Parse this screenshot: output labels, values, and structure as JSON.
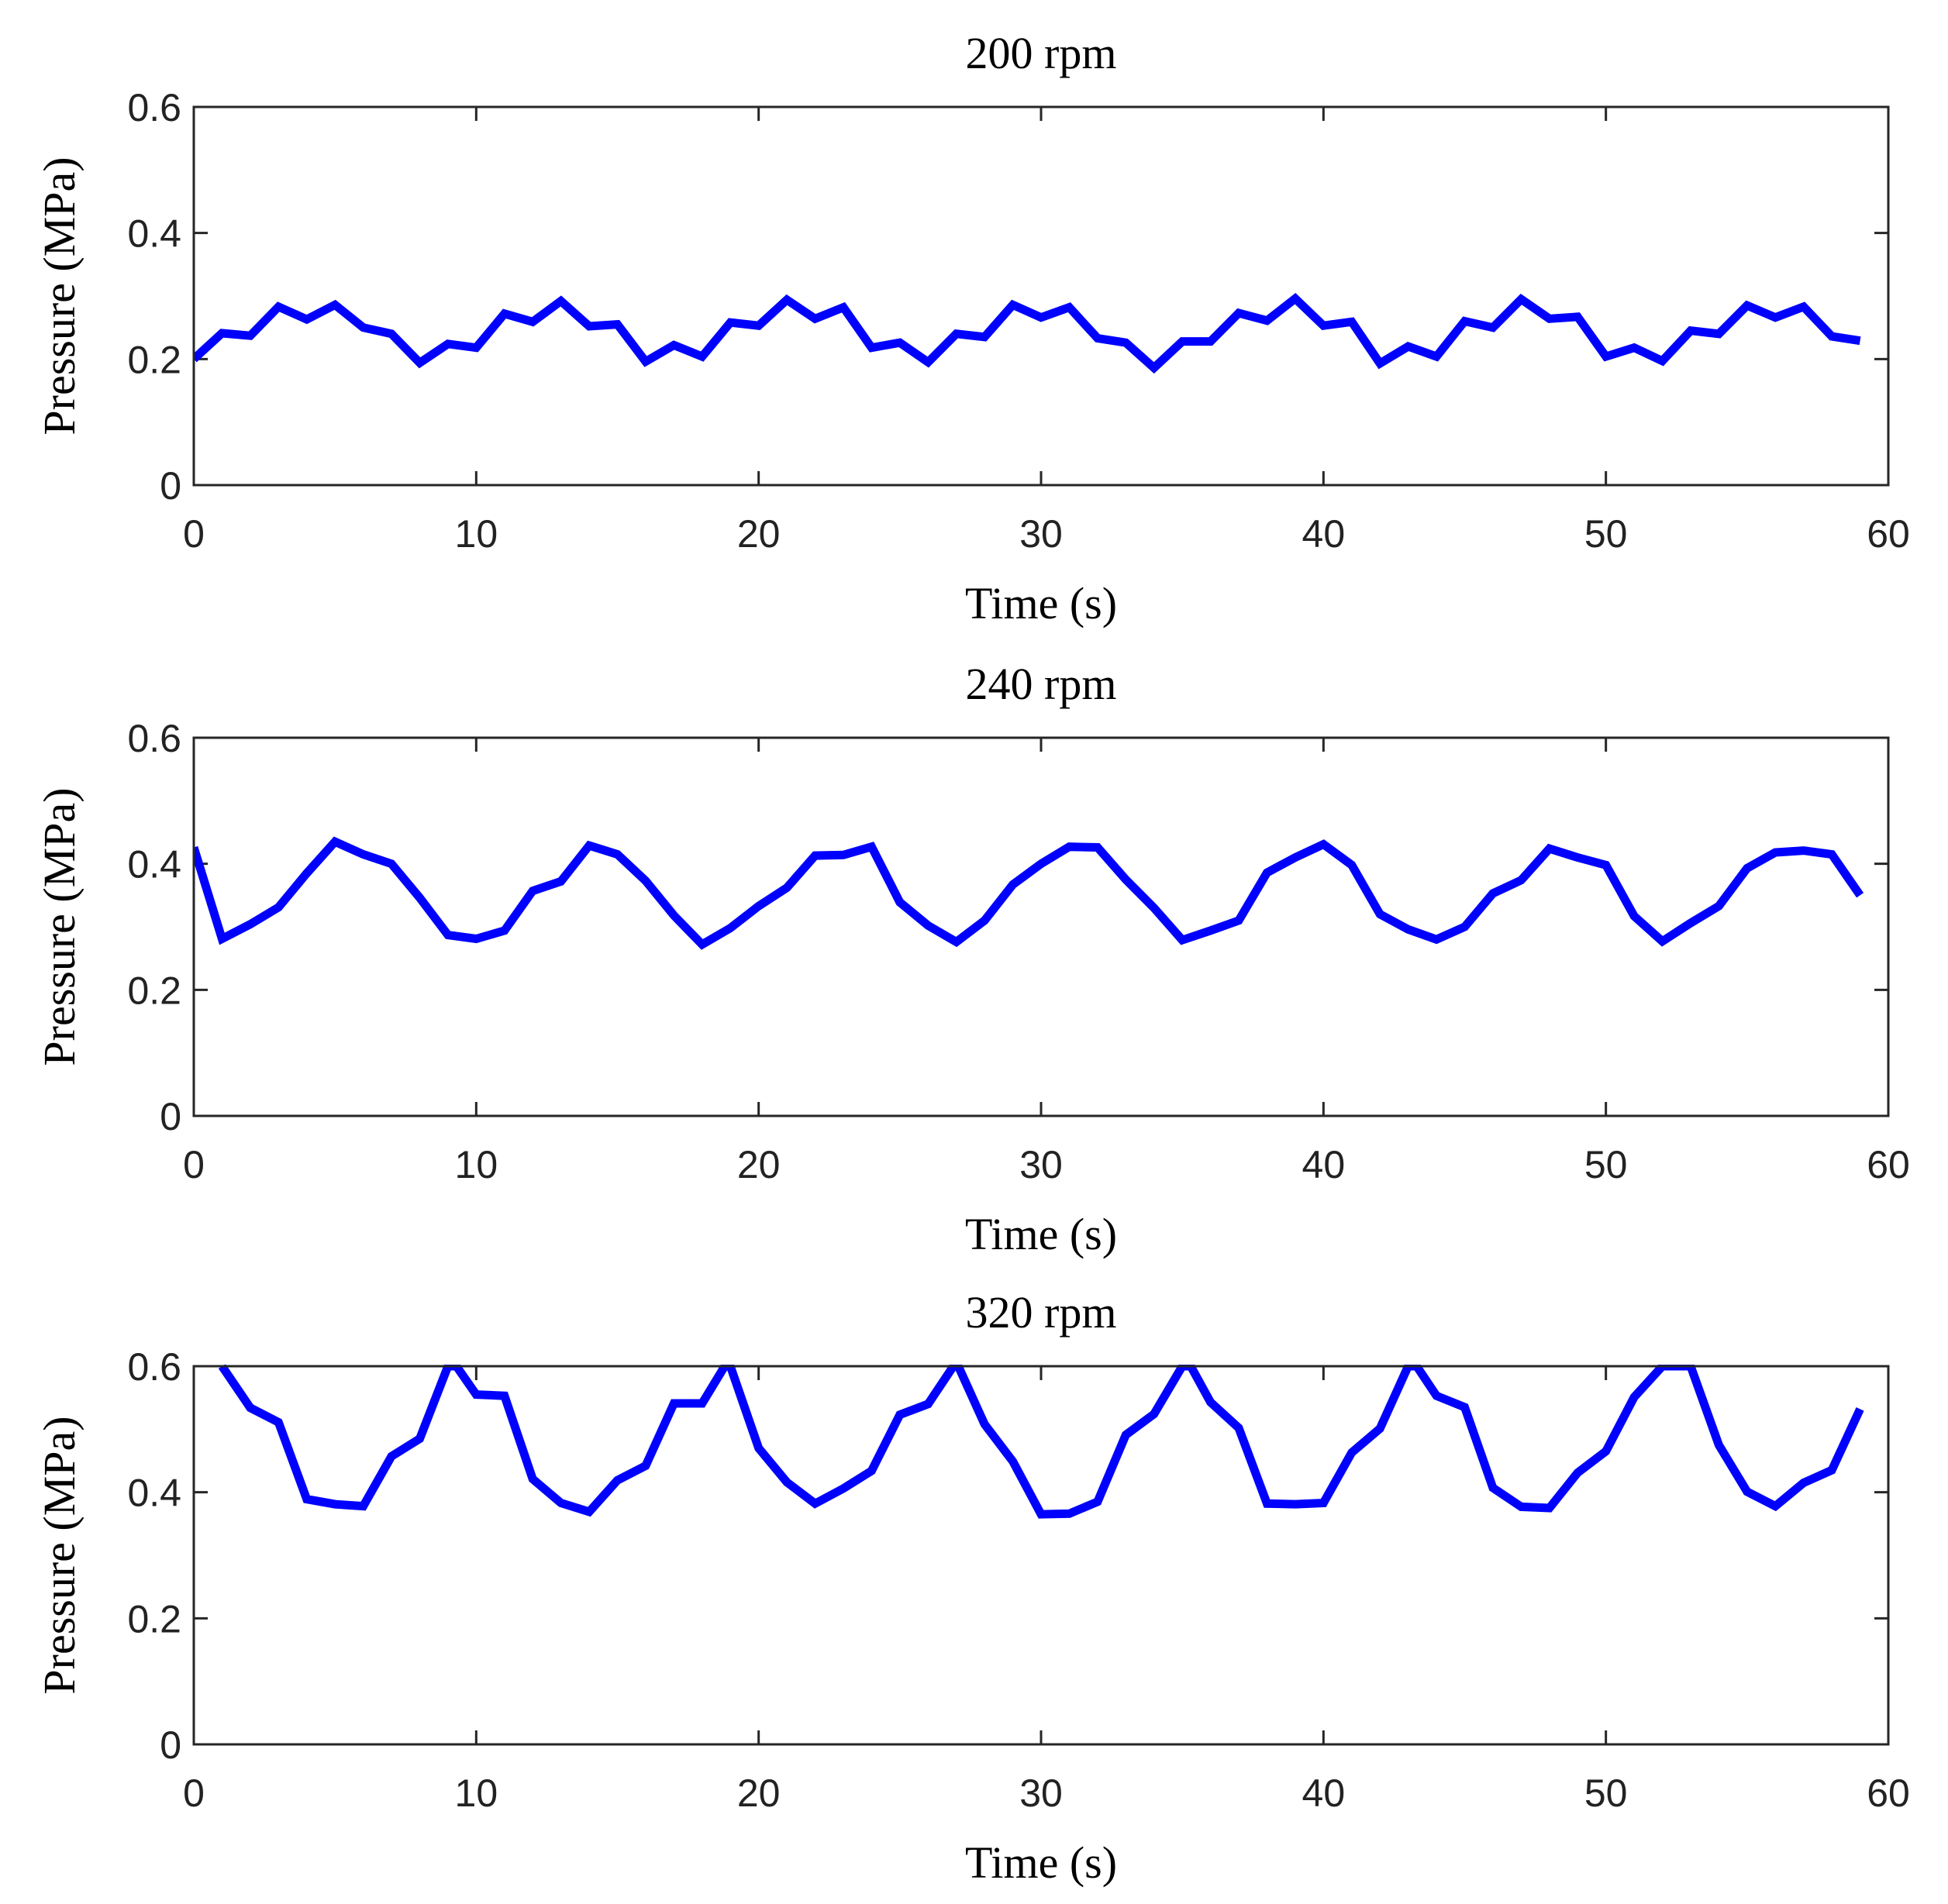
{
  "figure": {
    "line_color": "#0000ff",
    "axis_color": "#262626"
  },
  "chart_data": [
    {
      "type": "line",
      "title": "200 rpm",
      "xlabel": "Time (s)",
      "ylabel": "Pressure (MPa)",
      "xlim": [
        0,
        60
      ],
      "ylim": [
        0,
        0.6
      ],
      "xticks": [
        0,
        10,
        20,
        30,
        40,
        50,
        60
      ],
      "yticks": [
        0,
        0.2,
        0.4,
        0.6
      ],
      "xtick_labels": [
        "0",
        "10",
        "20",
        "30",
        "40",
        "50",
        "60"
      ],
      "ytick_labels": [
        "0",
        "0.2",
        "0.4",
        "0.6"
      ],
      "series": [
        {
          "name": "Pressure",
          "x": [
            0,
            1,
            2,
            3,
            4,
            5,
            6,
            7,
            8,
            9,
            10,
            11,
            12,
            13,
            14,
            15,
            16,
            17,
            18,
            19,
            20,
            21,
            22,
            23,
            24,
            25,
            26,
            27,
            28,
            29,
            30,
            31,
            32,
            33,
            34,
            35,
            36,
            37,
            38,
            39,
            40,
            41,
            42,
            43,
            44,
            45,
            46,
            47,
            48,
            49,
            50,
            51,
            52,
            53,
            54,
            55,
            56,
            57,
            58,
            59
          ],
          "values": [
            0.2,
            0.241,
            0.237,
            0.283,
            0.263,
            0.286,
            0.25,
            0.24,
            0.194,
            0.224,
            0.218,
            0.272,
            0.259,
            0.292,
            0.252,
            0.255,
            0.196,
            0.222,
            0.204,
            0.258,
            0.253,
            0.294,
            0.264,
            0.282,
            0.218,
            0.226,
            0.195,
            0.24,
            0.235,
            0.286,
            0.266,
            0.282,
            0.233,
            0.226,
            0.186,
            0.228,
            0.228,
            0.273,
            0.261,
            0.296,
            0.253,
            0.259,
            0.193,
            0.22,
            0.204,
            0.26,
            0.25,
            0.295,
            0.264,
            0.267,
            0.204,
            0.218,
            0.197,
            0.245,
            0.24,
            0.285,
            0.266,
            0.283,
            0.236,
            0.229
          ]
        }
      ]
    },
    {
      "type": "line",
      "title": "240 rpm",
      "xlabel": "Time (s)",
      "ylabel": "Pressure (MPa)",
      "xlim": [
        0,
        60
      ],
      "ylim": [
        0,
        0.6
      ],
      "xticks": [
        0,
        10,
        20,
        30,
        40,
        50,
        60
      ],
      "yticks": [
        0,
        0.2,
        0.4,
        0.6
      ],
      "xtick_labels": [
        "0",
        "10",
        "20",
        "30",
        "40",
        "50",
        "60"
      ],
      "ytick_labels": [
        "0",
        "0.2",
        "0.4",
        "0.6"
      ],
      "series": [
        {
          "name": "Pressure",
          "x": [
            0,
            1,
            2,
            3,
            4,
            5,
            6,
            7,
            8,
            9,
            10,
            11,
            12,
            13,
            14,
            15,
            16,
            17,
            18,
            19,
            20,
            21,
            22,
            23,
            24,
            25,
            26,
            27,
            28,
            29,
            30,
            31,
            32,
            33,
            34,
            35,
            36,
            37,
            38,
            39,
            40,
            41,
            42,
            43,
            44,
            45,
            46,
            47,
            48,
            49,
            50,
            51,
            52,
            53,
            54,
            55,
            56,
            57,
            58,
            59
          ],
          "values": [
            0.426,
            0.281,
            0.304,
            0.331,
            0.385,
            0.435,
            0.415,
            0.4,
            0.346,
            0.287,
            0.281,
            0.294,
            0.357,
            0.372,
            0.429,
            0.415,
            0.373,
            0.318,
            0.272,
            0.298,
            0.333,
            0.362,
            0.413,
            0.414,
            0.427,
            0.339,
            0.302,
            0.276,
            0.31,
            0.367,
            0.4,
            0.427,
            0.426,
            0.375,
            0.33,
            0.279,
            0.294,
            0.31,
            0.386,
            0.41,
            0.431,
            0.398,
            0.32,
            0.296,
            0.28,
            0.3,
            0.353,
            0.374,
            0.424,
            0.41,
            0.398,
            0.317,
            0.277,
            0.306,
            0.333,
            0.393,
            0.418,
            0.421,
            0.415,
            0.35
          ]
        }
      ]
    },
    {
      "type": "line",
      "title": "320 rpm",
      "xlabel": "Time (s)",
      "ylabel": "Pressure (MPa)",
      "xlim": [
        0,
        60
      ],
      "ylim": [
        0,
        0.6
      ],
      "xticks": [
        0,
        10,
        20,
        30,
        40,
        50,
        60
      ],
      "yticks": [
        0,
        0.2,
        0.4,
        0.6
      ],
      "xtick_labels": [
        "0",
        "10",
        "20",
        "30",
        "40",
        "50",
        "60"
      ],
      "ytick_labels": [
        "0",
        "0.2",
        "0.4",
        "0.6"
      ],
      "series": [
        {
          "name": "Pressure",
          "x": [
            1,
            2,
            3,
            4,
            5,
            6,
            7,
            8,
            9,
            9.3,
            10,
            11,
            12,
            13,
            14,
            15,
            16,
            17,
            18,
            18.8,
            19,
            20,
            21,
            22,
            23,
            24,
            25,
            26,
            27,
            28,
            29,
            30,
            31,
            32,
            33,
            34,
            35,
            35.3,
            36,
            37,
            38,
            39,
            40,
            41,
            42,
            43,
            43.3,
            44,
            45,
            46,
            47,
            48,
            49,
            50,
            51,
            52,
            53,
            54,
            55,
            56,
            57,
            58,
            59
          ],
          "values": [
            0.6,
            0.534,
            0.511,
            0.389,
            0.381,
            0.378,
            0.457,
            0.485,
            0.6,
            0.6,
            0.555,
            0.553,
            0.421,
            0.383,
            0.369,
            0.419,
            0.442,
            0.541,
            0.541,
            0.6,
            0.6,
            0.47,
            0.416,
            0.382,
            0.406,
            0.434,
            0.523,
            0.54,
            0.607,
            0.508,
            0.449,
            0.365,
            0.366,
            0.385,
            0.491,
            0.524,
            0.6,
            0.6,
            0.543,
            0.502,
            0.382,
            0.381,
            0.383,
            0.463,
            0.501,
            0.6,
            0.6,
            0.553,
            0.535,
            0.407,
            0.377,
            0.375,
            0.431,
            0.465,
            0.551,
            0.6,
            0.6,
            0.475,
            0.401,
            0.378,
            0.415,
            0.435,
            0.532
          ]
        }
      ]
    }
  ]
}
